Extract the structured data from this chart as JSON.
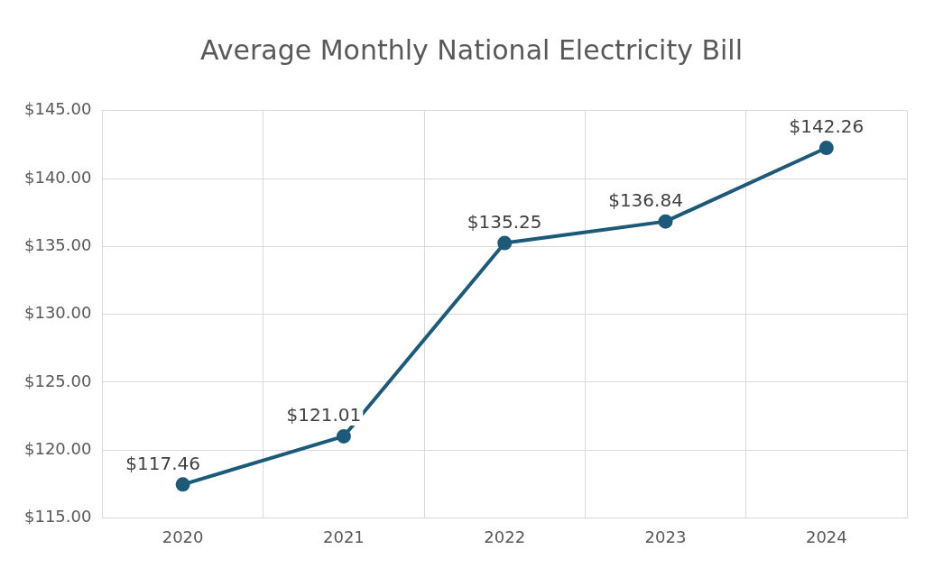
{
  "chart_data": {
    "type": "line",
    "title": "Average Monthly National Electricity Bill",
    "categories": [
      "2020",
      "2021",
      "2022",
      "2023",
      "2024"
    ],
    "series": [
      {
        "color": "#1d5a7a",
        "values": [
          117.46,
          121.01,
          135.25,
          136.84,
          142.26
        ],
        "value_labels": [
          "$117.46",
          "$121.01",
          "$135.25",
          "$136.84",
          "$142.26"
        ]
      }
    ],
    "ylim": [
      115,
      145
    ],
    "yticks": [
      {
        "value": 115,
        "label": "$115.00"
      },
      {
        "value": 120,
        "label": "$120.00"
      },
      {
        "value": 125,
        "label": "$125.00"
      },
      {
        "value": 130,
        "label": "$130.00"
      },
      {
        "value": 135,
        "label": "$135.00"
      },
      {
        "value": 140,
        "label": "$140.00"
      },
      {
        "value": 145,
        "label": "$145.00"
      }
    ],
    "grid": true,
    "legend": false,
    "marker": "circle",
    "line_style": "solid"
  }
}
